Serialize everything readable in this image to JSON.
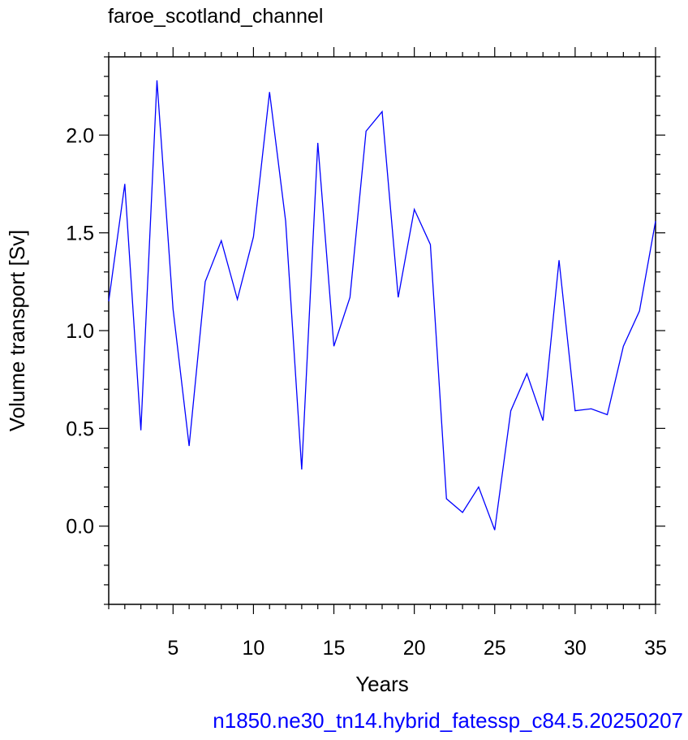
{
  "chart_data": {
    "type": "line",
    "title": "faroe_scotland_channel",
    "caption": "n1850.ne30_tn14.hybrid_fatessp_c84.5.20250207",
    "xlabel": "Years",
    "ylabel": "Volume transport [Sv]",
    "x": [
      1,
      2,
      3,
      4,
      5,
      6,
      7,
      8,
      9,
      10,
      11,
      12,
      13,
      14,
      15,
      16,
      17,
      18,
      19,
      20,
      21,
      22,
      23,
      24,
      25,
      26,
      27,
      28,
      29,
      30,
      31,
      32,
      33,
      34,
      35
    ],
    "series": [
      {
        "color": "#0000ff",
        "values": [
          1.15,
          1.75,
          0.49,
          2.28,
          1.11,
          0.41,
          1.25,
          1.46,
          1.16,
          1.48,
          2.22,
          1.56,
          0.29,
          1.96,
          0.92,
          1.17,
          2.02,
          2.12,
          1.17,
          1.62,
          1.44,
          0.14,
          0.07,
          0.2,
          -0.02,
          0.59,
          0.78,
          0.54,
          1.36,
          0.59,
          0.6,
          0.57,
          0.92,
          1.1,
          1.56
        ]
      }
    ],
    "xlim": [
      1,
      35
    ],
    "ylim": [
      -0.4,
      2.4
    ],
    "xticks": [
      5,
      10,
      15,
      20,
      25,
      30,
      35
    ],
    "yticks": [
      {
        "value": 0,
        "label": "0.0"
      },
      0.5,
      {
        "value": 1,
        "label": "1.0"
      },
      1.5,
      {
        "value": 2,
        "label": "2.0"
      }
    ],
    "xminorticks": [
      1,
      2,
      3,
      4,
      6,
      7,
      8,
      9,
      11,
      12,
      13,
      14,
      16,
      17,
      18,
      19,
      21,
      22,
      23,
      24,
      26,
      27,
      28,
      29,
      31,
      32,
      33,
      34
    ],
    "yminorticks": [
      -0.4,
      -0.3,
      -0.2,
      -0.1,
      0.1,
      0.2,
      0.3,
      0.4,
      0.6,
      0.7,
      0.8,
      0.9,
      1.1,
      1.2,
      1.3,
      1.4,
      1.6,
      1.7,
      1.8,
      1.9,
      2.1,
      2.2,
      2.3,
      2.4
    ],
    "grid": false
  }
}
